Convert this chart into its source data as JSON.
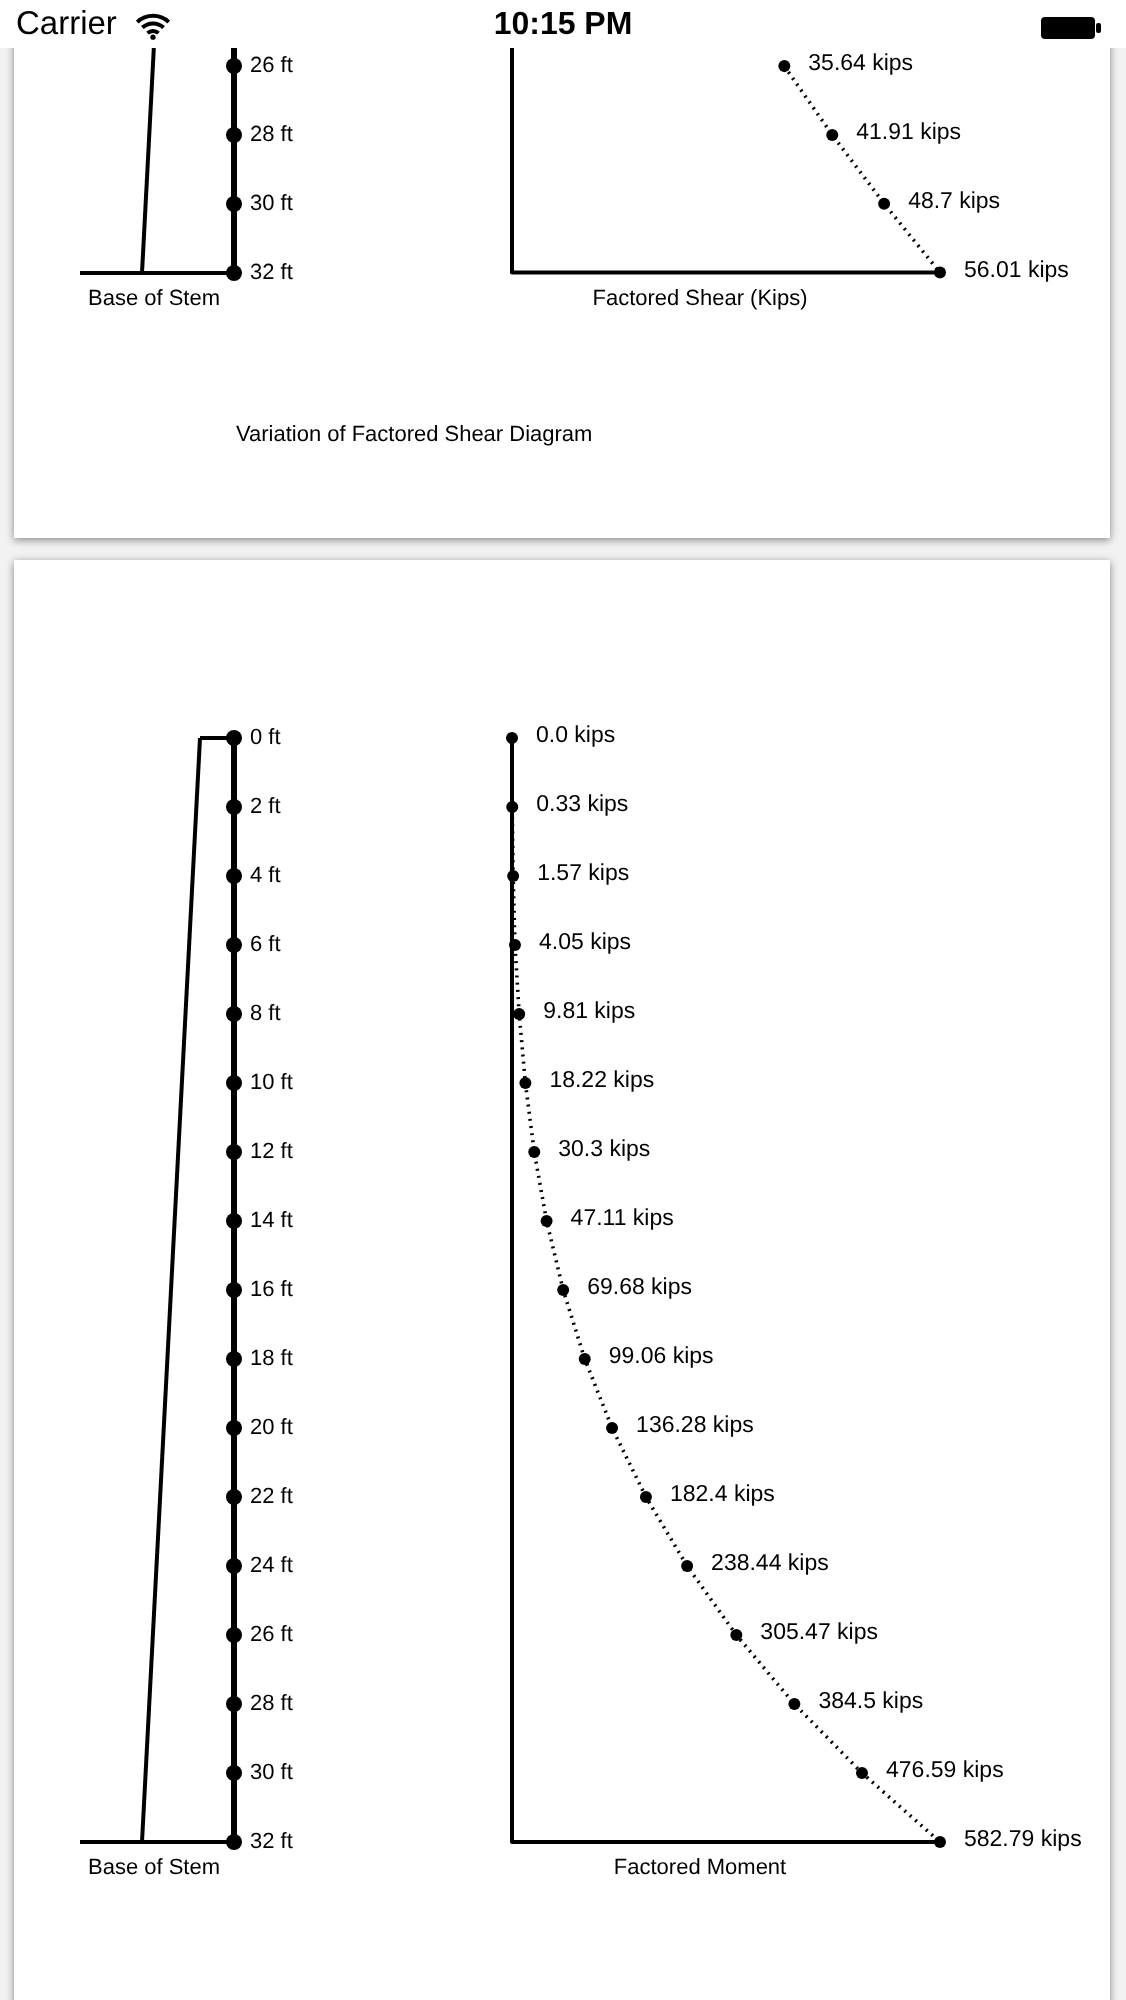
{
  "chart_data": [
    {
      "type": "line",
      "orientation": "horizontal",
      "title": "Variation of Factored Shear Diagram",
      "xlabel": "Factored Shear (Kips)",
      "categories": [
        "26 ft",
        "28 ft",
        "30 ft",
        "32 ft"
      ],
      "values": [
        35.64,
        41.91,
        48.7,
        56.01
      ],
      "value_labels": [
        "35.64 kips",
        "41.91 kips",
        "48.7 kips",
        "56.01 kips"
      ],
      "color": "#000000",
      "xlim": [
        0,
        56.01
      ],
      "marker": "circle",
      "line_style": "dotted",
      "tick_labels": "y",
      "annotations": [
        "Base of Stem",
        "Carrier",
        "10:15 PM"
      ]
    },
    {
      "type": "line",
      "orientation": "horizontal",
      "xlabel": "Factored Moment",
      "categories": [
        "0 ft",
        "2 ft",
        "4 ft",
        "6 ft",
        "8 ft",
        "10 ft",
        "12 ft",
        "14 ft",
        "16 ft",
        "18 ft",
        "20 ft",
        "22 ft",
        "24 ft",
        "26 ft",
        "28 ft",
        "30 ft",
        "32 ft"
      ],
      "values": [
        0,
        0.33,
        1.57,
        4.05,
        9.81,
        18.22,
        30.3,
        47.11,
        69.68,
        99.06,
        136.28,
        182.4,
        238.44,
        305.47,
        384.5,
        476.59,
        582.79
      ],
      "value_labels": [
        "0.0 kips",
        "0.33 kips",
        "1.57 kips",
        "4.05 kips",
        "9.81 kips",
        "18.22 kips",
        "30.3 kips",
        "47.11 kips",
        "69.68 kips",
        "99.06 kips",
        "136.28 kips",
        "182.4 kips",
        "238.44 kips",
        "305.47 kips",
        "384.5 kips",
        "476.59 kips",
        "582.79 kips"
      ],
      "color": "#000000",
      "xlim": [
        0,
        582.79
      ],
      "marker": "circle",
      "line_style": "dotted",
      "tick_labels": "y",
      "annotations": [
        "Base of Stem"
      ]
    }
  ]
}
